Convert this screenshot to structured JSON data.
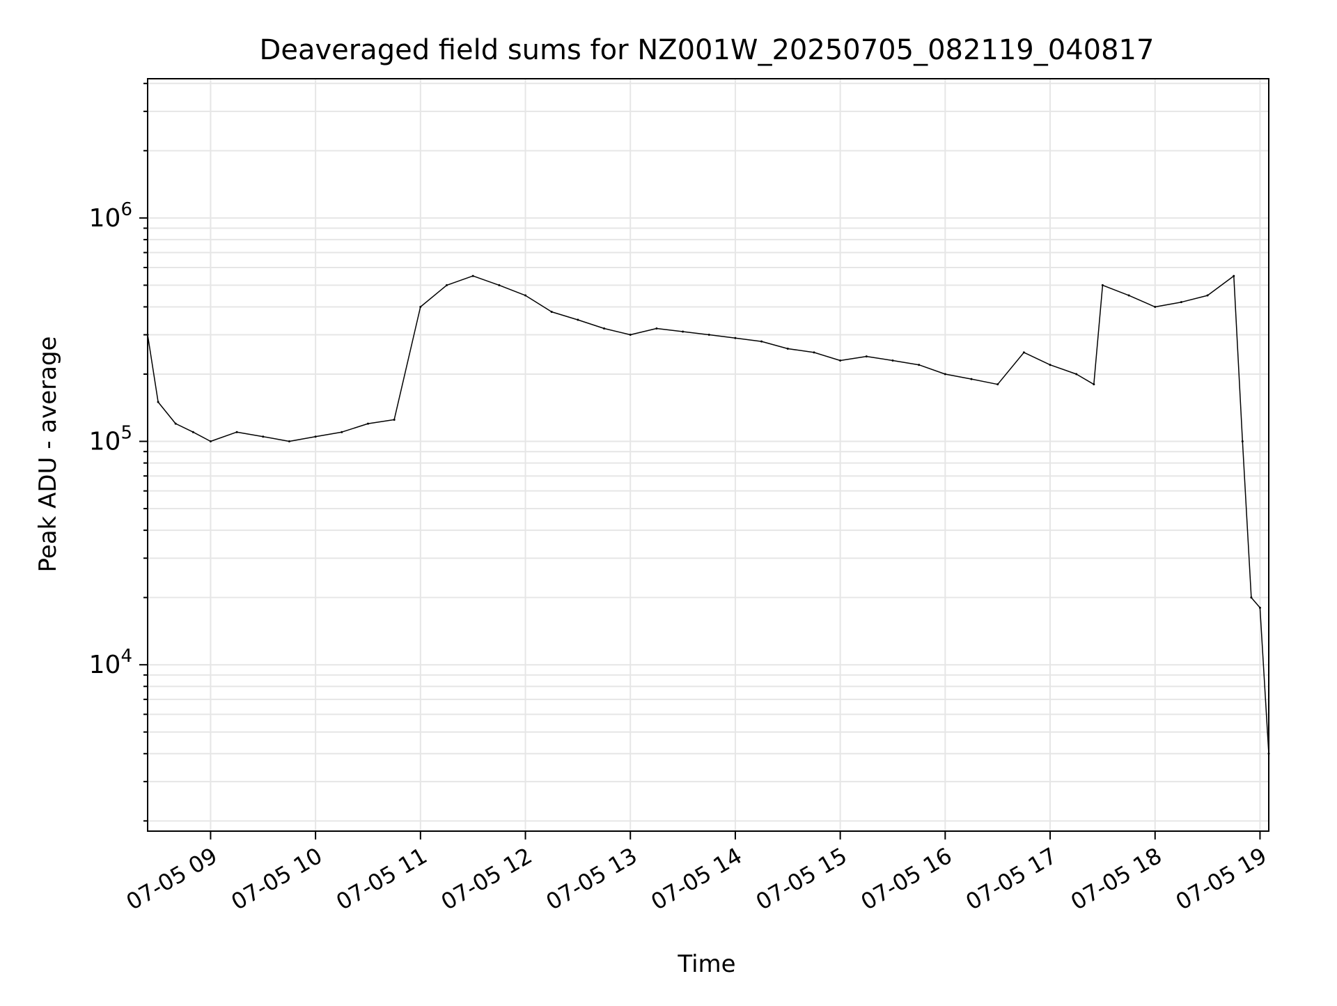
{
  "chart_data": {
    "type": "line",
    "title": "Deaveraged field sums for NZ001W_20250705_082119_040817",
    "xlabel": "Time",
    "ylabel": "Peak ADU - average",
    "yscale": "log",
    "xlim": [
      "2025-07-05 08:24",
      "2025-07-05 19:05"
    ],
    "ylim": [
      1800,
      4200000
    ],
    "x_tick_labels": [
      "07-05 09",
      "07-05 10",
      "07-05 11",
      "07-05 12",
      "07-05 13",
      "07-05 14",
      "07-05 15",
      "07-05 16",
      "07-05 17",
      "07-05 18",
      "07-05 19"
    ],
    "y_tick_labels": [
      {
        "base": "10",
        "exp": "4"
      },
      {
        "base": "10",
        "exp": "5"
      },
      {
        "base": "10",
        "exp": "6"
      }
    ],
    "grid": true,
    "line_color": "#000000",
    "grid_color": "#e6e6e6",
    "series": [
      {
        "x": [
          "2025-07-05 08:24",
          "2025-07-05 08:30",
          "2025-07-05 08:40",
          "2025-07-05 08:50",
          "2025-07-05 09:00",
          "2025-07-05 09:15",
          "2025-07-05 09:30",
          "2025-07-05 09:45",
          "2025-07-05 10:00",
          "2025-07-05 10:15",
          "2025-07-05 10:30",
          "2025-07-05 10:45",
          "2025-07-05 11:00",
          "2025-07-05 11:15",
          "2025-07-05 11:30",
          "2025-07-05 11:45",
          "2025-07-05 12:00",
          "2025-07-05 12:15",
          "2025-07-05 12:30",
          "2025-07-05 12:45",
          "2025-07-05 13:00",
          "2025-07-05 13:15",
          "2025-07-05 13:30",
          "2025-07-05 13:45",
          "2025-07-05 14:00",
          "2025-07-05 14:15",
          "2025-07-05 14:30",
          "2025-07-05 14:45",
          "2025-07-05 15:00",
          "2025-07-05 15:15",
          "2025-07-05 15:30",
          "2025-07-05 15:45",
          "2025-07-05 16:00",
          "2025-07-05 16:15",
          "2025-07-05 16:30",
          "2025-07-05 16:45",
          "2025-07-05 17:00",
          "2025-07-05 17:15",
          "2025-07-05 17:25",
          "2025-07-05 17:30",
          "2025-07-05 17:45",
          "2025-07-05 18:00",
          "2025-07-05 18:15",
          "2025-07-05 18:30",
          "2025-07-05 18:45",
          "2025-07-05 18:50",
          "2025-07-05 18:55",
          "2025-07-05 19:00",
          "2025-07-05 19:05"
        ],
        "y": [
          300000,
          150000,
          120000,
          110000,
          100000,
          110000,
          105000,
          100000,
          105000,
          110000,
          120000,
          125000,
          400000,
          500000,
          550000,
          500000,
          450000,
          380000,
          350000,
          320000,
          300000,
          320000,
          310000,
          300000,
          290000,
          280000,
          260000,
          250000,
          230000,
          240000,
          230000,
          220000,
          200000,
          190000,
          180000,
          250000,
          220000,
          200000,
          180000,
          500000,
          450000,
          400000,
          420000,
          450000,
          550000,
          100000,
          20000,
          18000,
          4000
        ]
      }
    ]
  }
}
